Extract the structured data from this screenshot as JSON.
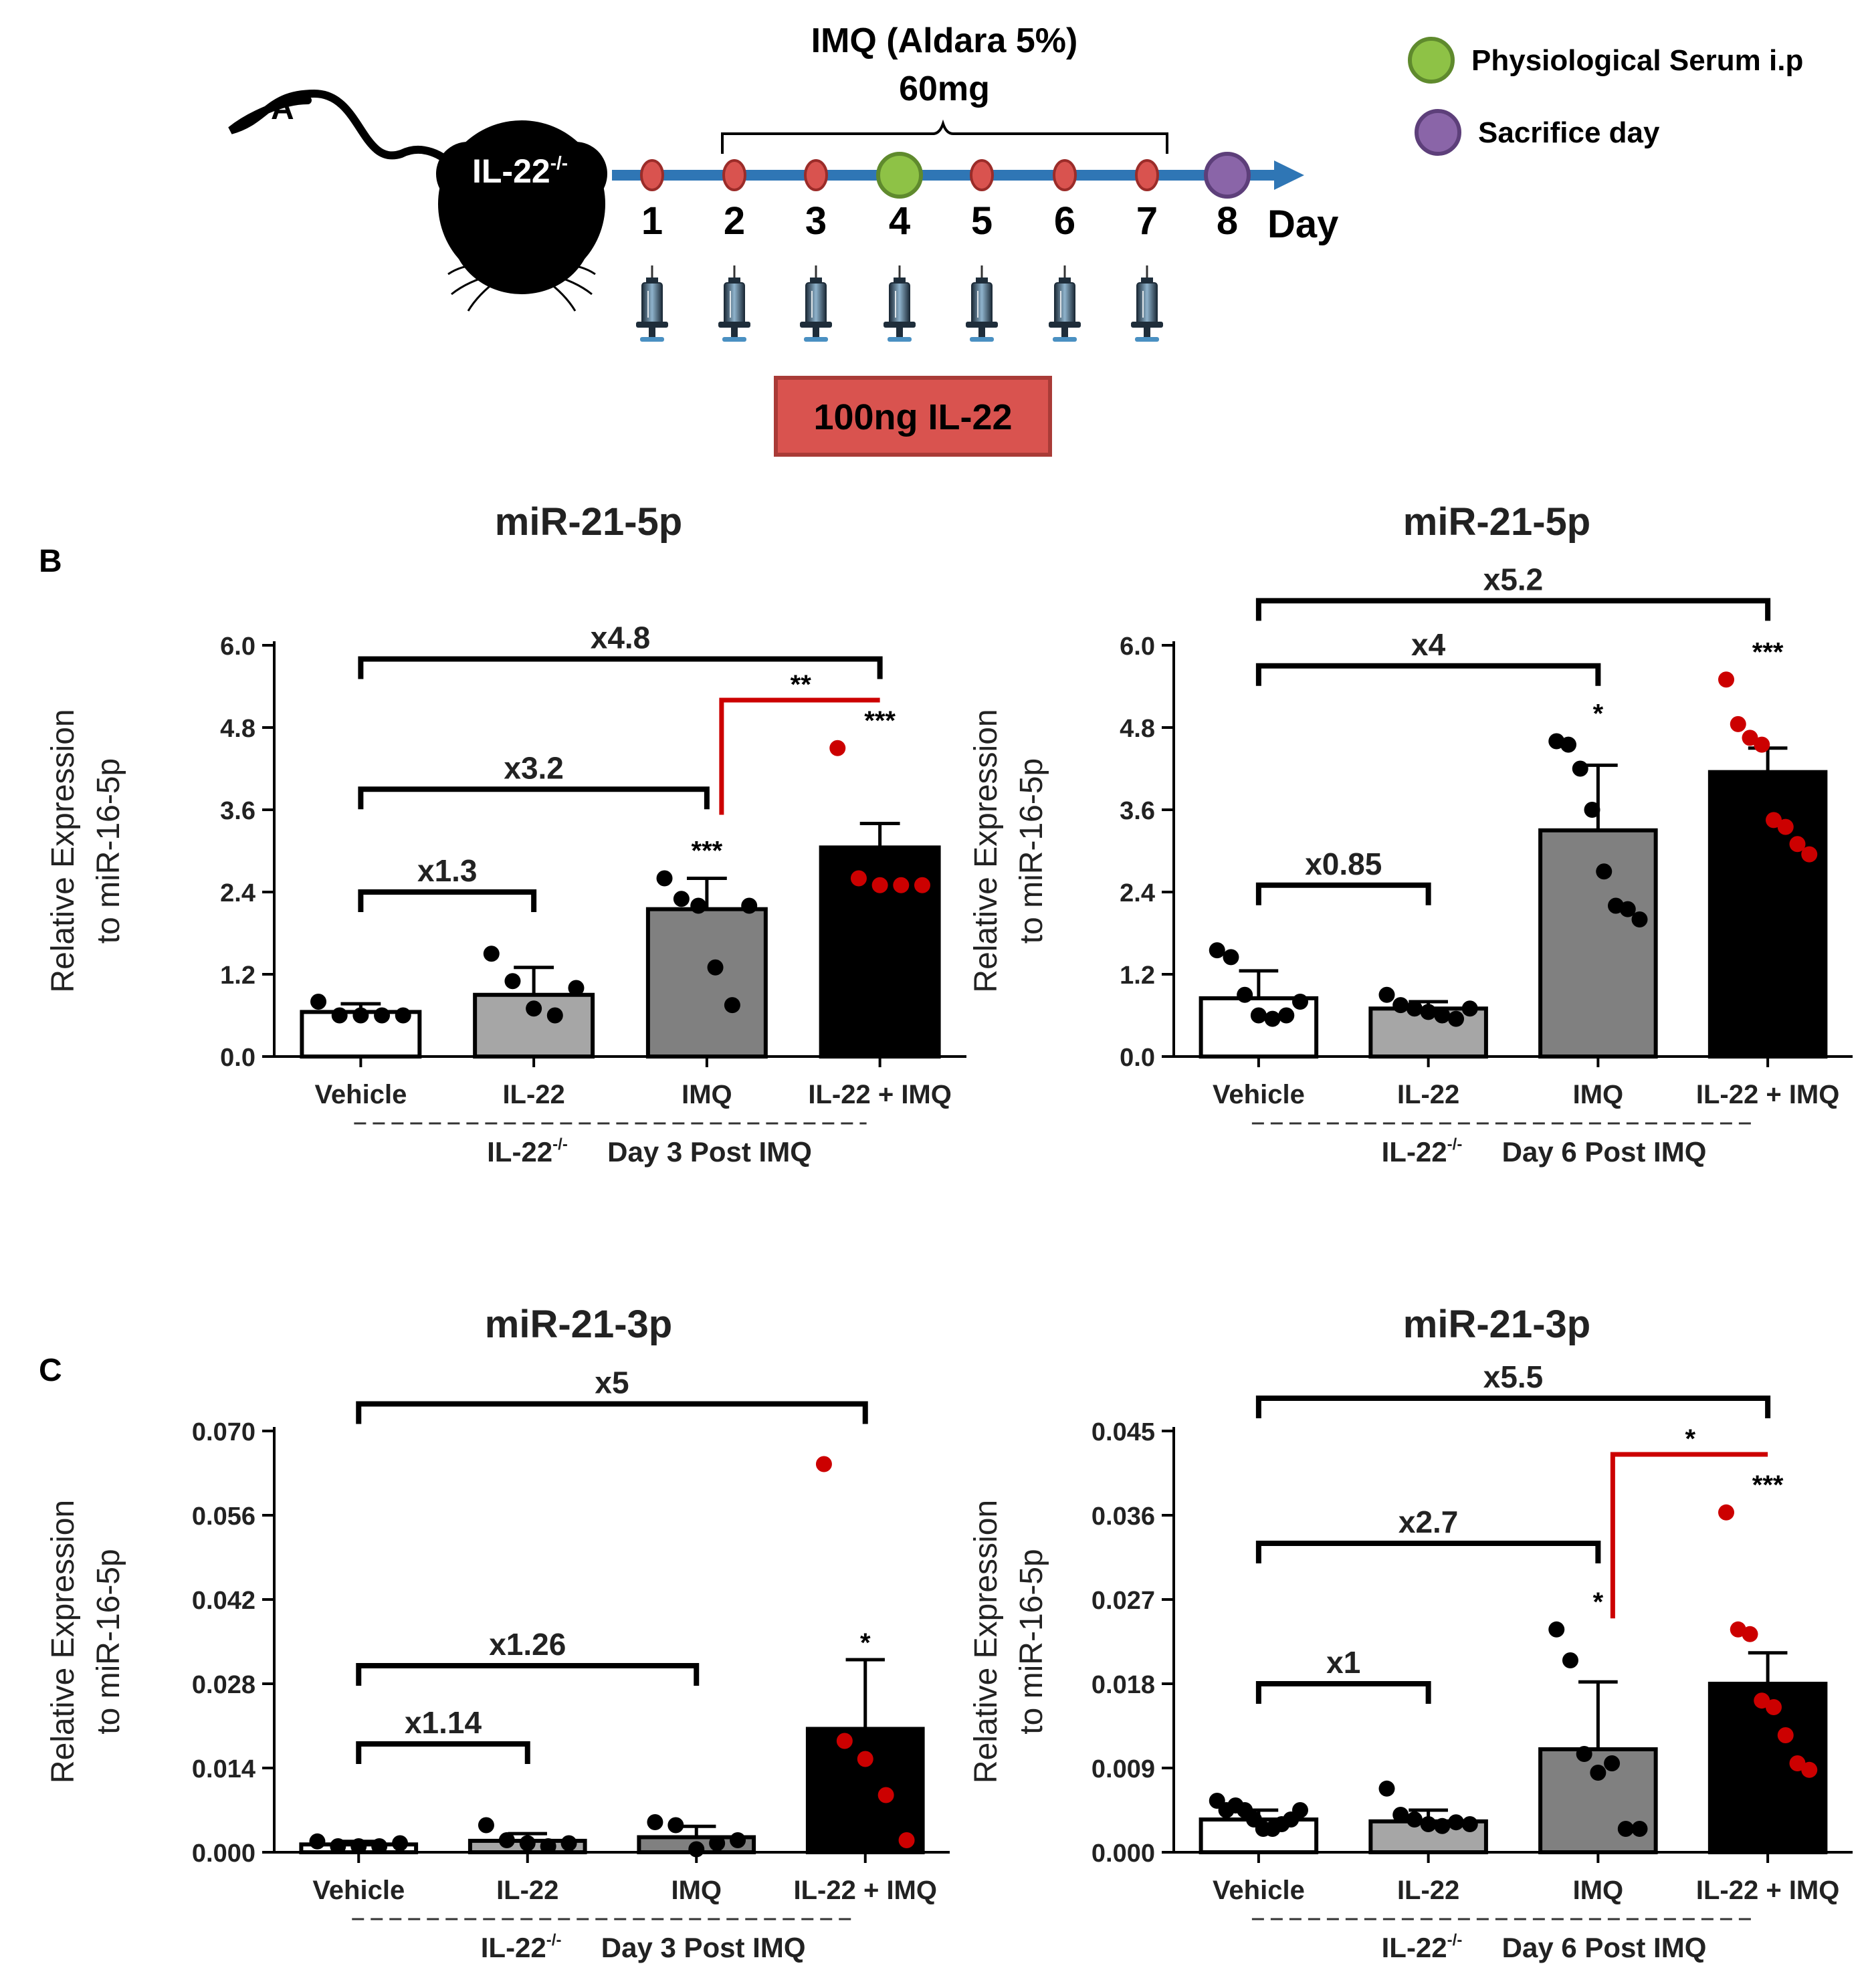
{
  "panel_a": {
    "label": "A",
    "mouse_label": "IL-22",
    "mouse_sup": "-/-",
    "imq_label": "IMQ (Aldara 5%)",
    "imq_dose": "60mg",
    "days": [
      "1",
      "2",
      "3",
      "4",
      "5",
      "6",
      "7",
      "8"
    ],
    "day_label": "Day",
    "il22_box": "100ng IL-22",
    "legend": [
      {
        "label": "Physiological Serum i.p",
        "color": "#8ec246"
      },
      {
        "label": "Sacrifice day",
        "color": "#8a65a8"
      }
    ],
    "colors": {
      "timeline": "#2f76b5",
      "dot": "#d9534f",
      "box": "#d9534f"
    }
  },
  "panel_b_label": "B",
  "panel_c_label": "C",
  "colors": {
    "vehicle": "#ffffff",
    "il22": "#a6a6a6",
    "imq": "#808080",
    "combo": "#000000",
    "red": "#cc0000"
  },
  "chart_data": [
    {
      "type": "bar",
      "title": "miR-21-5p",
      "ylabel": [
        "Relative Expression",
        "to miR-16-5p"
      ],
      "ylim": [
        0,
        6.0
      ],
      "yticks": [
        "0.0",
        "1.2",
        "2.4",
        "3.6",
        "4.8",
        "6.0"
      ],
      "categories": [
        "Vehicle",
        "IL-22",
        "IMQ",
        "IL-22 + IMQ"
      ],
      "values": [
        0.65,
        0.9,
        2.15,
        3.05
      ],
      "errors": [
        0.12,
        0.4,
        0.45,
        0.35
      ],
      "points": [
        [
          0.8,
          0.6,
          0.6,
          0.6,
          0.6
        ],
        [
          1.5,
          1.1,
          0.7,
          0.6,
          1.0
        ],
        [
          2.6,
          2.3,
          2.2,
          1.3,
          0.75,
          2.2
        ],
        [
          4.5,
          2.6,
          2.5,
          2.5,
          2.5
        ]
      ],
      "stars": [
        "",
        "",
        "***",
        "***"
      ],
      "brackets": [
        {
          "from": 0,
          "to": 1,
          "label": "x1.3",
          "y": 2.4
        },
        {
          "from": 0,
          "to": 2,
          "label": "x3.2",
          "y": 3.9
        },
        {
          "from": 0,
          "to": 3,
          "label": "x4.8",
          "y": 5.8
        }
      ],
      "red_bracket": {
        "from": 2,
        "to": 3,
        "label": "**",
        "y": 5.2
      },
      "footer_strain": "IL-22",
      "footer_sup": "-/-",
      "footer_day": "Day 3 Post IMQ"
    },
    {
      "type": "bar",
      "title": "miR-21-5p",
      "ylabel": [
        "Relative Expression",
        "to miR-16-5p"
      ],
      "ylim": [
        0,
        6.0
      ],
      "yticks": [
        "0.0",
        "1.2",
        "2.4",
        "3.6",
        "4.8",
        "6.0"
      ],
      "categories": [
        "Vehicle",
        "IL-22",
        "IMQ",
        "IL-22 + IMQ"
      ],
      "values": [
        0.85,
        0.7,
        3.3,
        4.15
      ],
      "errors": [
        0.4,
        0.1,
        0.95,
        0.35
      ],
      "points": [
        [
          1.55,
          1.45,
          0.9,
          0.6,
          0.55,
          0.6,
          0.8
        ],
        [
          0.9,
          0.75,
          0.7,
          0.65,
          0.6,
          0.55,
          0.7
        ],
        [
          4.6,
          4.55,
          4.2,
          3.6,
          2.7,
          2.2,
          2.15,
          2.0
        ],
        [
          5.5,
          4.85,
          4.65,
          4.55,
          3.45,
          3.35,
          3.1,
          2.95
        ]
      ],
      "stars": [
        "",
        "",
        "*",
        "***"
      ],
      "brackets": [
        {
          "from": 0,
          "to": 1,
          "label": "x0.85",
          "y": 2.5
        },
        {
          "from": 0,
          "to": 2,
          "label": "x4",
          "y": 5.7
        },
        {
          "from": 0,
          "to": 3,
          "label": "x5.2",
          "y": 6.65
        }
      ],
      "footer_strain": "IL-22",
      "footer_sup": "-/-",
      "footer_day": "Day 6 Post IMQ"
    },
    {
      "type": "bar",
      "title": "miR-21-3p",
      "ylabel": [
        "Relative Expression",
        "to miR-16-5p"
      ],
      "ylim": [
        0,
        0.07
      ],
      "yticks": [
        "0.000",
        "0.014",
        "0.028",
        "0.042",
        "0.056",
        "0.070"
      ],
      "categories": [
        "Vehicle",
        "IL-22",
        "IMQ",
        "IL-22 + IMQ"
      ],
      "values": [
        0.0013,
        0.0019,
        0.0025,
        0.0205
      ],
      "errors": [
        0.0005,
        0.0012,
        0.0018,
        0.0115
      ],
      "points": [
        [
          0.0018,
          0.001,
          0.001,
          0.001,
          0.0015
        ],
        [
          0.0045,
          0.002,
          0.0015,
          0.001,
          0.0015
        ],
        [
          0.005,
          0.0045,
          0.0005,
          0.0015,
          0.002
        ],
        [
          0.0645,
          0.0185,
          0.0155,
          0.0095,
          0.002
        ]
      ],
      "stars": [
        "",
        "",
        "",
        "*"
      ],
      "brackets": [
        {
          "from": 0,
          "to": 1,
          "label": "x1.14",
          "y": 0.018
        },
        {
          "from": 0,
          "to": 2,
          "label": "x1.26",
          "y": 0.031
        },
        {
          "from": 0,
          "to": 3,
          "label": "x5",
          "y": 0.0745
        }
      ],
      "footer_strain": "IL-22",
      "footer_sup": "-/-",
      "footer_day": "Day 3 Post IMQ"
    },
    {
      "type": "bar",
      "title": "miR-21-3p",
      "ylabel": [
        "Relative Expression",
        "to miR-16-5p"
      ],
      "ylim": [
        0,
        0.045
      ],
      "yticks": [
        "0.000",
        "0.009",
        "0.018",
        "0.027",
        "0.036",
        "0.045"
      ],
      "categories": [
        "Vehicle",
        "IL-22",
        "IMQ",
        "IL-22 + IMQ"
      ],
      "values": [
        0.0035,
        0.0033,
        0.011,
        0.018
      ],
      "errors": [
        0.001,
        0.0012,
        0.0072,
        0.0033
      ],
      "points": [
        [
          0.0055,
          0.0045,
          0.005,
          0.0045,
          0.0035,
          0.0025,
          0.0025,
          0.003,
          0.0035,
          0.0045
        ],
        [
          0.0068,
          0.004,
          0.0035,
          0.003,
          0.0028,
          0.0032,
          0.003
        ],
        [
          0.0238,
          0.0205,
          0.0105,
          0.0085,
          0.0095,
          0.0025,
          0.0025
        ],
        [
          0.0363,
          0.0238,
          0.0233,
          0.0162,
          0.0155,
          0.0125,
          0.0095,
          0.0088
        ]
      ],
      "stars": [
        "",
        "",
        "*",
        "***"
      ],
      "brackets": [
        {
          "from": 0,
          "to": 1,
          "label": "x1",
          "y": 0.018
        },
        {
          "from": 0,
          "to": 2,
          "label": "x2.7",
          "y": 0.033
        },
        {
          "from": 0,
          "to": 3,
          "label": "x5.5",
          "y": 0.0485
        }
      ],
      "red_bracket": {
        "from": 2,
        "to": 3,
        "label": "*",
        "y": 0.0425
      },
      "footer_strain": "IL-22",
      "footer_sup": "-/-",
      "footer_day": "Day 6 Post IMQ"
    }
  ]
}
